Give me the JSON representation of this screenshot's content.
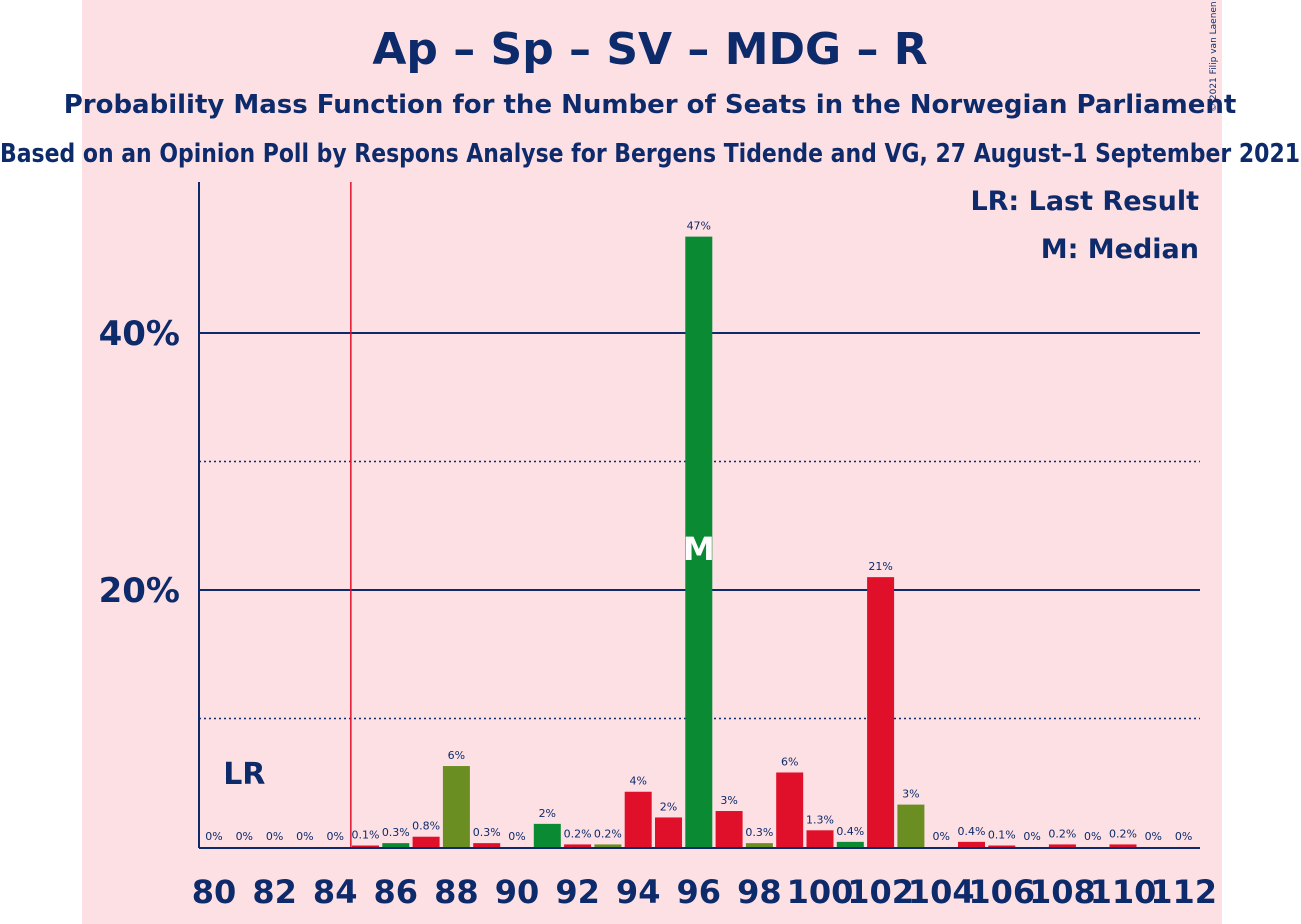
{
  "title": "Ap – Sp – SV – MDG – R",
  "subtitle": "Probability Mass Function for the Number of Seats in the Norwegian Parliament",
  "subtitle2": "Based on an Opinion Poll by Respons Analyse for Bergens Tidende and VG, 27 August–1 September 2021",
  "copyright": "© 2021 Filip van Laenen",
  "legend": {
    "last_result": "LR: Last Result",
    "median": "M: Median"
  },
  "lr_label": "LR",
  "median_label": "M",
  "colors": {
    "background": "#fde0e4",
    "text": "#0d2a6b",
    "red": "#e0102a",
    "green": "#0a8a32",
    "olive": "#6b8e23",
    "lr_line": "#e0102a"
  },
  "chart_data": {
    "type": "bar",
    "x_tick_labels": [
      "80",
      "82",
      "84",
      "86",
      "88",
      "90",
      "92",
      "94",
      "96",
      "98",
      "100",
      "102",
      "104",
      "106",
      "108",
      "110",
      "112"
    ],
    "y_tick_labels": [
      "20%",
      "40%"
    ],
    "ylim": [
      0,
      52
    ],
    "y_gridlines_solid": [
      20,
      40
    ],
    "y_gridlines_dotted": [
      10,
      30
    ],
    "last_result_seats": 85,
    "median_seats": 96,
    "bars": [
      {
        "x": 80,
        "value": 0,
        "label": "0%",
        "color": "red"
      },
      {
        "x": 81,
        "value": 0,
        "label": "0%",
        "color": "red"
      },
      {
        "x": 82,
        "value": 0,
        "label": "0%",
        "color": "red"
      },
      {
        "x": 83,
        "value": 0,
        "label": "0%",
        "color": "red"
      },
      {
        "x": 84,
        "value": 0,
        "label": "0%",
        "color": "red"
      },
      {
        "x": 85,
        "value": 0.1,
        "label": "0.1%",
        "color": "red"
      },
      {
        "x": 86,
        "value": 0.3,
        "label": "0.3%",
        "color": "green"
      },
      {
        "x": 87,
        "value": 0.8,
        "label": "0.8%",
        "color": "red"
      },
      {
        "x": 88,
        "value": 6.3,
        "label": "6%",
        "color": "olive"
      },
      {
        "x": 89,
        "value": 0.3,
        "label": "0.3%",
        "color": "red"
      },
      {
        "x": 90,
        "value": 0,
        "label": "0%",
        "color": "red"
      },
      {
        "x": 91,
        "value": 1.8,
        "label": "2%",
        "color": "green"
      },
      {
        "x": 92,
        "value": 0.2,
        "label": "0.2%",
        "color": "red"
      },
      {
        "x": 93,
        "value": 0.2,
        "label": "0.2%",
        "color": "olive"
      },
      {
        "x": 94,
        "value": 4.3,
        "label": "4%",
        "color": "red"
      },
      {
        "x": 95,
        "value": 2.3,
        "label": "2%",
        "color": "red"
      },
      {
        "x": 96,
        "value": 47.5,
        "label": "47%",
        "color": "green"
      },
      {
        "x": 97,
        "value": 2.8,
        "label": "3%",
        "color": "red"
      },
      {
        "x": 98,
        "value": 0.3,
        "label": "0.3%",
        "color": "olive"
      },
      {
        "x": 99,
        "value": 5.8,
        "label": "6%",
        "color": "red"
      },
      {
        "x": 100,
        "value": 1.3,
        "label": "1.3%",
        "color": "red"
      },
      {
        "x": 101,
        "value": 0.4,
        "label": "0.4%",
        "color": "green"
      },
      {
        "x": 102,
        "value": 21.0,
        "label": "21%",
        "color": "red"
      },
      {
        "x": 103,
        "value": 3.3,
        "label": "3%",
        "color": "olive"
      },
      {
        "x": 104,
        "value": 0,
        "label": "0%",
        "color": "red"
      },
      {
        "x": 105,
        "value": 0.4,
        "label": "0.4%",
        "color": "red"
      },
      {
        "x": 106,
        "value": 0.1,
        "label": "0.1%",
        "color": "red"
      },
      {
        "x": 107,
        "value": 0,
        "label": "0%",
        "color": "red"
      },
      {
        "x": 108,
        "value": 0.2,
        "label": "0.2%",
        "color": "red"
      },
      {
        "x": 109,
        "value": 0,
        "label": "0%",
        "color": "red"
      },
      {
        "x": 110,
        "value": 0.2,
        "label": "0.2%",
        "color": "red"
      },
      {
        "x": 111,
        "value": 0,
        "label": "0%",
        "color": "red"
      },
      {
        "x": 112,
        "value": 0,
        "label": "0%",
        "color": "red"
      }
    ]
  }
}
